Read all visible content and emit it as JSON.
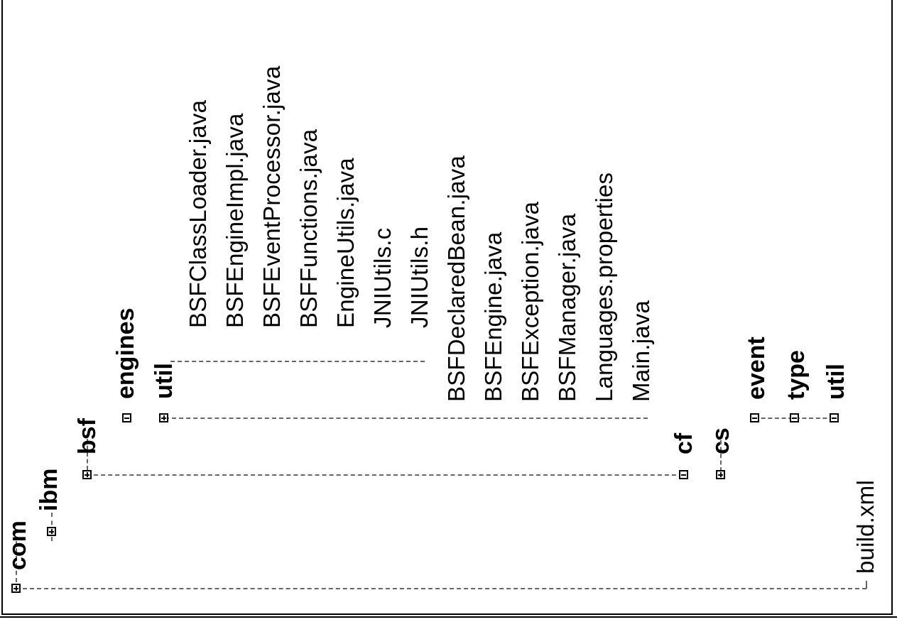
{
  "tree": {
    "root": {
      "label": "com",
      "expanded": false
    },
    "ibm": {
      "label": "ibm",
      "expanded": false
    },
    "bsf": {
      "label": "bsf",
      "expanded": false
    },
    "bsf_children": {
      "engines": {
        "label": "engines",
        "expanded": true
      },
      "util": {
        "label": "util",
        "expanded": false
      },
      "util_files": [
        "BSFClassLoader.java",
        "BSFEngineImpl.java",
        "BSFEventProcessor.java",
        "BSFFunctions.java",
        "EngineUtils.java",
        "JNIUtils.c",
        "JNIUtils.h"
      ],
      "files": [
        "BSFDeclaredBean.java",
        "BSFEngine.java",
        "BSFException.java",
        "BSFManager.java",
        "Languages.properties",
        "Main.java"
      ]
    },
    "cf": {
      "label": "cf",
      "expanded": true
    },
    "cs": {
      "label": "cs",
      "expanded": false
    },
    "cs_children": [
      {
        "label": "event",
        "expanded": true
      },
      {
        "label": "type",
        "expanded": true
      },
      {
        "label": "util",
        "expanded": true
      }
    ],
    "build_file": "build.xml"
  }
}
